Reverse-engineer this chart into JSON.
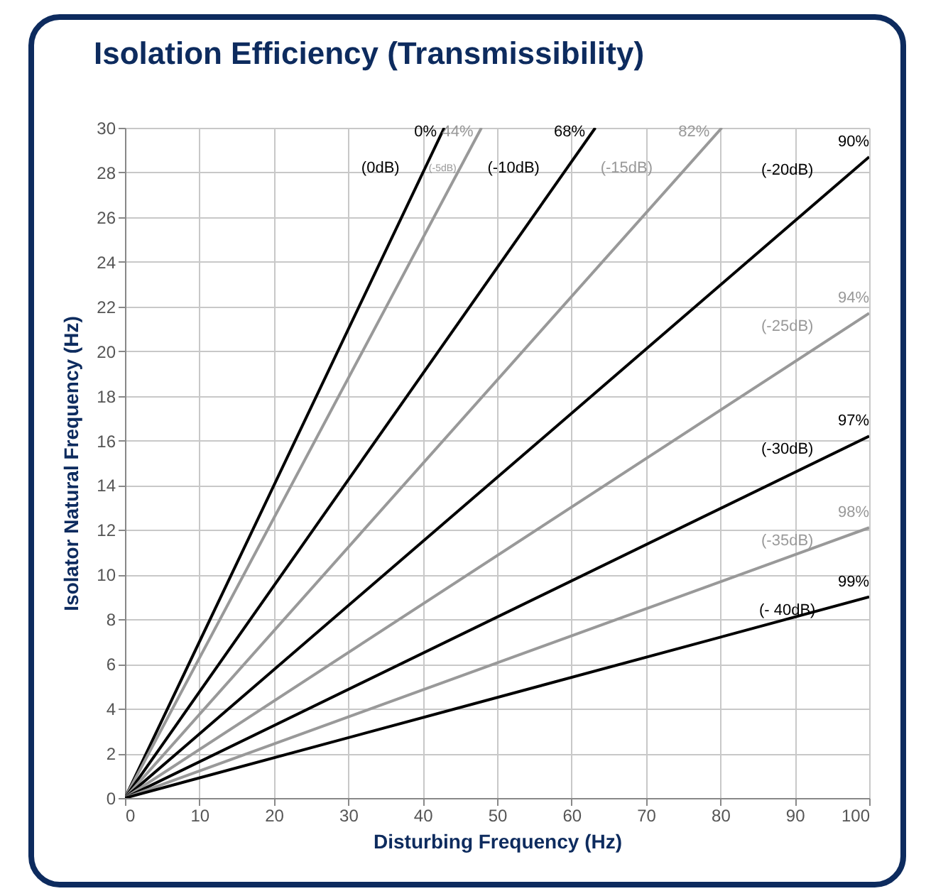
{
  "chart_data": {
    "type": "line",
    "title": "Isolation Efficiency (Transmissibility)",
    "xlabel": "Disturbing Frequency (Hz)",
    "ylabel": "Isolator Natural Frequency (Hz)",
    "xlim": [
      0,
      100
    ],
    "ylim": [
      0,
      30
    ],
    "xticks": [
      0,
      10,
      20,
      30,
      40,
      50,
      60,
      70,
      80,
      90,
      100
    ],
    "yticks": [
      0,
      2,
      4,
      6,
      8,
      10,
      12,
      14,
      16,
      18,
      20,
      22,
      24,
      26,
      28,
      30
    ],
    "grid": true,
    "legend": false,
    "marker": "none",
    "line_style": "solid",
    "series": [
      {
        "name": "0%",
        "color": "#000000",
        "x": [
          0,
          42.9
        ],
        "values": [
          0,
          30
        ]
      },
      {
        "name": "44%",
        "color": "#999999",
        "x": [
          0,
          47.9
        ],
        "values": [
          0,
          30
        ]
      },
      {
        "name": "68%",
        "color": "#000000",
        "x": [
          0,
          63.2
        ],
        "values": [
          0,
          30
        ]
      },
      {
        "name": "82%",
        "color": "#999999",
        "x": [
          0,
          80.2
        ],
        "values": [
          0,
          30
        ]
      },
      {
        "name": "90%",
        "color": "#000000",
        "x": [
          0,
          100
        ],
        "values": [
          0,
          28.7
        ]
      },
      {
        "name": "94%",
        "color": "#999999",
        "x": [
          0,
          100
        ],
        "values": [
          0,
          21.7
        ]
      },
      {
        "name": "97%",
        "color": "#000000",
        "x": [
          0,
          100
        ],
        "values": [
          0,
          16.2
        ]
      },
      {
        "name": "98%",
        "color": "#999999",
        "x": [
          0,
          100
        ],
        "values": [
          0,
          12.1
        ]
      },
      {
        "name": "99%",
        "color": "#000000",
        "x": [
          0,
          100
        ],
        "values": [
          0,
          9.0
        ]
      }
    ],
    "annotations": [
      "(0dB)",
      "(-5dB)",
      "(-10dB)",
      "(-15dB)",
      "(-20dB)",
      "(-25dB)",
      "(-30dB)",
      "(-35dB)",
      "(- 40dB)"
    ]
  }
}
